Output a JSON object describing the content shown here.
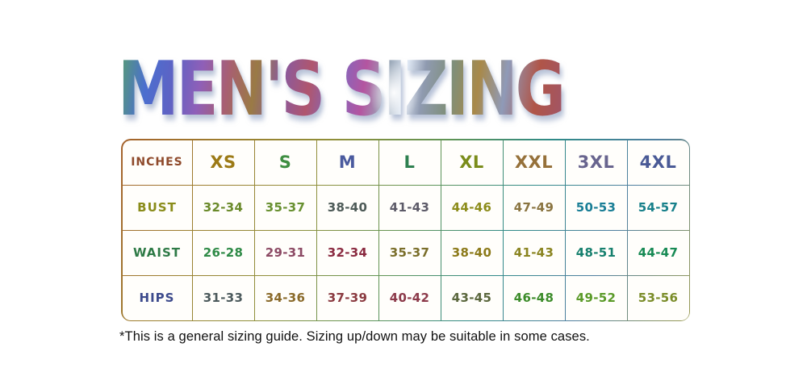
{
  "title": "MEN'S SIZING",
  "footnote": "*This is a general sizing guide. Sizing up/down may be suitable in some cases.",
  "table": {
    "unit": {
      "text": "INCHES",
      "color": "#8f4a2b"
    },
    "header": [
      {
        "text": "XS",
        "color": "#9c7a16"
      },
      {
        "text": "S",
        "color": "#3e8e41"
      },
      {
        "text": "M",
        "color": "#4a5a9e"
      },
      {
        "text": "L",
        "color": "#2e8050"
      },
      {
        "text": "XL",
        "color": "#7a8c1a"
      },
      {
        "text": "XXL",
        "color": "#96713a"
      },
      {
        "text": "3XL",
        "color": "#68648e"
      },
      {
        "text": "4XL",
        "color": "#4a5a96"
      }
    ],
    "rows": [
      {
        "label": "BUST",
        "label_color": "#8a8c1a",
        "values": [
          {
            "text": "32-34",
            "color": "#6a8a2a"
          },
          {
            "text": "35-37",
            "color": "#689030"
          },
          {
            "text": "38-40",
            "color": "#4d5a57"
          },
          {
            "text": "41-43",
            "color": "#5c5a68"
          },
          {
            "text": "44-46",
            "color": "#8c8c1a"
          },
          {
            "text": "47-49",
            "color": "#8a7440"
          },
          {
            "text": "50-53",
            "color": "#197e96"
          },
          {
            "text": "54-57",
            "color": "#17808a"
          }
        ]
      },
      {
        "label": "WAIST",
        "label_color": "#2e7a46",
        "values": [
          {
            "text": "26-28",
            "color": "#2e8a46"
          },
          {
            "text": "29-31",
            "color": "#8c4a64"
          },
          {
            "text": "32-34",
            "color": "#8a2a40"
          },
          {
            "text": "35-37",
            "color": "#7a6e2a"
          },
          {
            "text": "38-40",
            "color": "#8c7a1a"
          },
          {
            "text": "41-43",
            "color": "#8a8420"
          },
          {
            "text": "48-51",
            "color": "#17806e"
          },
          {
            "text": "44-47",
            "color": "#178a54"
          }
        ]
      },
      {
        "label": "HIPS",
        "label_color": "#3c4a8c",
        "values": [
          {
            "text": "31-33",
            "color": "#4c5a5c"
          },
          {
            "text": "34-36",
            "color": "#8a6a2a"
          },
          {
            "text": "37-39",
            "color": "#8a3a40"
          },
          {
            "text": "40-42",
            "color": "#8c3a4a"
          },
          {
            "text": "43-45",
            "color": "#5a663c"
          },
          {
            "text": "46-48",
            "color": "#3c8c2a"
          },
          {
            "text": "49-52",
            "color": "#5a9a28"
          },
          {
            "text": "53-56",
            "color": "#7a8c28"
          }
        ]
      }
    ]
  },
  "chart_data": {
    "type": "table",
    "title": "MEN'S SIZING",
    "unit": "INCHES",
    "columns": [
      "XS",
      "S",
      "M",
      "L",
      "XL",
      "XXL",
      "3XL",
      "4XL"
    ],
    "rows": [
      {
        "label": "BUST",
        "values": [
          "32-34",
          "35-37",
          "38-40",
          "41-43",
          "44-46",
          "47-49",
          "50-53",
          "54-57"
        ]
      },
      {
        "label": "WAIST",
        "values": [
          "26-28",
          "29-31",
          "32-34",
          "35-37",
          "38-40",
          "41-43",
          "48-51",
          "44-47"
        ]
      },
      {
        "label": "HIPS",
        "values": [
          "31-33",
          "34-36",
          "37-39",
          "40-42",
          "43-45",
          "46-48",
          "49-52",
          "53-56"
        ]
      }
    ],
    "footnote": "*This is a general sizing guide. Sizing up/down may be suitable in some cases."
  }
}
